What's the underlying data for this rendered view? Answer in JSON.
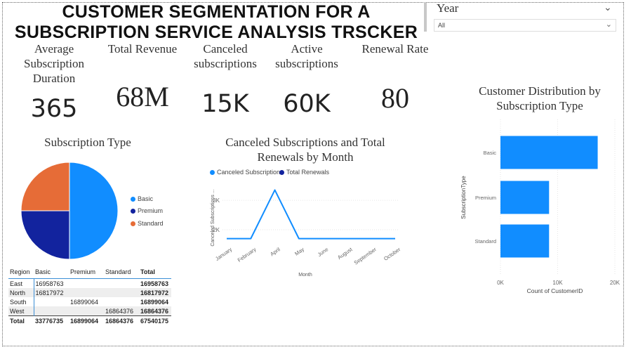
{
  "dashboard": {
    "title_line1": "CUSTOMER SEGMENTATION FOR A",
    "title_line2": "SUBSCRIPTION SERVICE ANALYSIS TRSCKER"
  },
  "slicer": {
    "title": "Year",
    "value": "All"
  },
  "kpis": [
    {
      "label": "Average Subscription Duration",
      "value": "365"
    },
    {
      "label": "Total Revenue",
      "value": "68M"
    },
    {
      "label": "Canceled subscriptions",
      "value": "15K"
    },
    {
      "label": "Active subscriptions",
      "value": "60K"
    },
    {
      "label": "Renewal Rate",
      "value": "80"
    }
  ],
  "pie": {
    "title": "Subscription Type",
    "legend": [
      "Basic",
      "Premium",
      "Standard"
    ]
  },
  "line": {
    "title": "Canceled Subscriptions and Total Renewals by Month",
    "legend": [
      "Canceled Subscriptions",
      "Total Renewals"
    ],
    "ylabel": "Canceled Subscriptions ...",
    "xlabel": "Month"
  },
  "bar": {
    "title": "Customer Distribution by Subscription Type",
    "ylabel": "SubscriptionType",
    "xlabel": "Count of CustomerID"
  },
  "matrix": {
    "headers": [
      "Region",
      "Basic",
      "Premium",
      "Standard",
      "Total"
    ],
    "rows": [
      [
        "East",
        "16958763",
        "",
        "",
        "16958763"
      ],
      [
        "North",
        "16817972",
        "",
        "",
        "16817972"
      ],
      [
        "South",
        "",
        "16899064",
        "",
        "16899064"
      ],
      [
        "West",
        "",
        "",
        "16864376",
        "16864376"
      ],
      [
        "Total",
        "33776735",
        "16899064",
        "16864376",
        "67540175"
      ]
    ]
  },
  "colors": {
    "basic": "#118dff",
    "premium": "#12239e",
    "standard": "#e66c37"
  },
  "chart_data": [
    {
      "type": "pie",
      "title": "Subscription Type",
      "categories": [
        "Basic",
        "Premium",
        "Standard"
      ],
      "values": [
        50,
        25,
        25
      ]
    },
    {
      "type": "line",
      "title": "Canceled Subscriptions and Total Renewals by Month",
      "xlabel": "Month",
      "ylabel": "Canceled Subscriptions ...",
      "categories": [
        "January",
        "February",
        "April",
        "May",
        "June",
        "August",
        "September",
        "October"
      ],
      "series": [
        {
          "name": "Canceled Subscriptions",
          "values": [
            1700,
            1700,
            3350,
            1700,
            1700,
            1700,
            1700,
            1700
          ]
        }
      ],
      "yticks": [
        "2K",
        "3K"
      ],
      "ylim": [
        1500,
        3600
      ]
    },
    {
      "type": "bar",
      "orientation": "horizontal",
      "title": "Customer Distribution by Subscription Type",
      "xlabel": "Count of CustomerID",
      "ylabel": "SubscriptionType",
      "categories": [
        "Basic",
        "Premium",
        "Standard"
      ],
      "values": [
        17000,
        8500,
        8500
      ],
      "xticks": [
        "0K",
        "10K",
        "20K"
      ],
      "xlim": [
        0,
        20000
      ]
    }
  ]
}
